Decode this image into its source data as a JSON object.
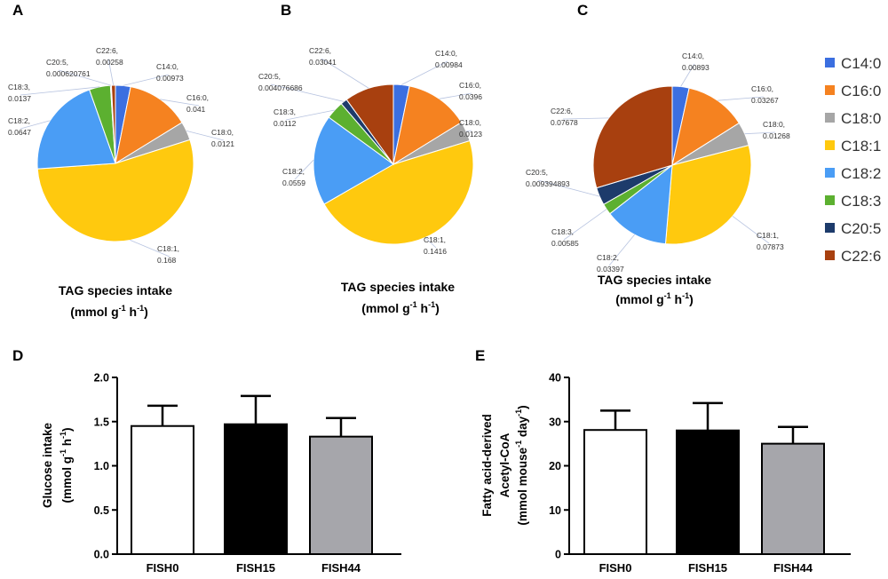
{
  "legend": [
    {
      "name": "C14:0",
      "color": "#3b6fe0"
    },
    {
      "name": "C16:0",
      "color": "#f58220"
    },
    {
      "name": "C18:0",
      "color": "#a6a6a6"
    },
    {
      "name": "C18:1",
      "color": "#ffc90e"
    },
    {
      "name": "C18:2",
      "color": "#4a9df5"
    },
    {
      "name": "C18:3",
      "color": "#5cb030"
    },
    {
      "name": "C20:5",
      "color": "#1d3b6b"
    },
    {
      "name": "C22:6",
      "color": "#a8400f"
    }
  ],
  "chart_data": [
    {
      "panel": "A",
      "type": "pie",
      "caption_line1": "TAG species intake",
      "caption_line2": "(mmol  g",
      "caption_sup1": "-1",
      "caption_mid": " h",
      "caption_sup2": "-1",
      "caption_end": ")",
      "slices": [
        {
          "name": "C14:0",
          "value": 0.00973,
          "label": "C14:0,",
          "value_label": "0.00973"
        },
        {
          "name": "C16:0",
          "value": 0.041,
          "label": "C16:0,",
          "value_label": "0.041"
        },
        {
          "name": "C18:0",
          "value": 0.0121,
          "label": "C18:0,",
          "value_label": "0.0121"
        },
        {
          "name": "C18:1",
          "value": 0.168,
          "label": "C18:1,",
          "value_label": "0.168"
        },
        {
          "name": "C18:2",
          "value": 0.0647,
          "label": "C18:2,",
          "value_label": "0.0647"
        },
        {
          "name": "C18:3",
          "value": 0.0137,
          "label": "C18:3,",
          "value_label": "0.0137"
        },
        {
          "name": "C20:5",
          "value": 0.000620761,
          "label": "C20:5,",
          "value_label": "0.000620761"
        },
        {
          "name": "C22:6",
          "value": 0.00258,
          "label": "C22:6,",
          "value_label": "0.00258"
        }
      ]
    },
    {
      "panel": "B",
      "type": "pie",
      "caption_line1": "TAG species intake",
      "caption_line2": "(mmol  g",
      "caption_sup1": "-1",
      "caption_mid": " h",
      "caption_sup2": "-1",
      "caption_end": ")",
      "slices": [
        {
          "name": "C14:0",
          "value": 0.00984,
          "label": "C14:0,",
          "value_label": "0.00984"
        },
        {
          "name": "C16:0",
          "value": 0.0396,
          "label": "C16:0,",
          "value_label": "0.0396"
        },
        {
          "name": "C18:0",
          "value": 0.0123,
          "label": "C18:0,",
          "value_label": "0.0123"
        },
        {
          "name": "C18:1",
          "value": 0.1416,
          "label": "C18:1,",
          "value_label": "0.1416"
        },
        {
          "name": "C18:2",
          "value": 0.0559,
          "label": "C18:2,",
          "value_label": "0.0559"
        },
        {
          "name": "C18:3",
          "value": 0.0112,
          "label": "C18:3,",
          "value_label": "0.0112"
        },
        {
          "name": "C20:5",
          "value": 0.004076686,
          "label": "C20:5,",
          "value_label": "0.004076686"
        },
        {
          "name": "C22:6",
          "value": 0.03041,
          "label": "C22:6,",
          "value_label": "0.03041"
        }
      ]
    },
    {
      "panel": "C",
      "type": "pie",
      "caption_line1": "TAG species intake",
      "caption_line2": "(mmol  g",
      "caption_sup1": "-1",
      "caption_mid": " h",
      "caption_sup2": "-1",
      "caption_end": ")",
      "slices": [
        {
          "name": "C14:0",
          "value": 0.00893,
          "label": "C14:0,",
          "value_label": "0.00893"
        },
        {
          "name": "C16:0",
          "value": 0.03267,
          "label": "C16:0,",
          "value_label": "0.03267"
        },
        {
          "name": "C18:0",
          "value": 0.01268,
          "label": "C18:0,",
          "value_label": "0.01268"
        },
        {
          "name": "C18:1",
          "value": 0.07873,
          "label": "C18:1,",
          "value_label": "0.07873"
        },
        {
          "name": "C18:2",
          "value": 0.03397,
          "label": "C18:2,",
          "value_label": "0.03397"
        },
        {
          "name": "C18:3",
          "value": 0.00585,
          "label": "C18:3,",
          "value_label": "0.00585"
        },
        {
          "name": "C20:5",
          "value": 0.009394893,
          "label": "C20:5,",
          "value_label": "0.009394893"
        },
        {
          "name": "C22:6",
          "value": 0.07678,
          "label": "C22:6,",
          "value_label": "0.07678"
        }
      ]
    },
    {
      "panel": "D",
      "type": "bar",
      "categories": [
        "FISH0",
        "FISH15",
        "FISH44"
      ],
      "values": [
        1.45,
        1.47,
        1.33
      ],
      "errors": [
        0.23,
        0.32,
        0.21
      ],
      "bar_colors": [
        "#ffffff",
        "#000000",
        "#a6a6ab"
      ],
      "ylim": [
        0.0,
        2.0
      ],
      "yticks": [
        0.0,
        0.5,
        1.0,
        1.5,
        2.0
      ],
      "ytick_labels": [
        "0.0",
        "0.5",
        "1.0",
        "1.5",
        "2.0"
      ],
      "ylabel_line1": "Glucose intake",
      "ylabel_line2": "(mmol g",
      "ylabel_sup1": "-1",
      "ylabel_mid": " h",
      "ylabel_sup2": "-1",
      "ylabel_end": ")"
    },
    {
      "panel": "E",
      "type": "bar",
      "categories": [
        "FISH0",
        "FISH15",
        "FISH44"
      ],
      "values": [
        28.1,
        28.0,
        25.0
      ],
      "errors": [
        4.4,
        6.2,
        3.8
      ],
      "bar_colors": [
        "#ffffff",
        "#000000",
        "#a6a6ab"
      ],
      "ylim": [
        0,
        40
      ],
      "yticks": [
        0,
        10,
        20,
        30,
        40
      ],
      "ytick_labels": [
        "0",
        "10",
        "20",
        "30",
        "40"
      ],
      "ylabel_line1": "Fatty acid-derived",
      "ylabel_line2": "Acetyl-CoA",
      "ylabel_line3": "(mmol mouse",
      "ylabel_sup1": "-1",
      "ylabel_mid": " day",
      "ylabel_sup2": "-1",
      "ylabel_end": ")"
    }
  ]
}
